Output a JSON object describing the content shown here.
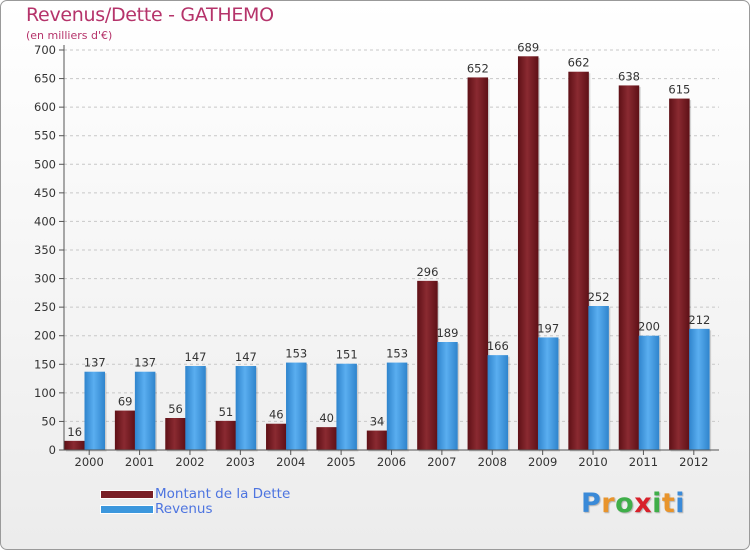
{
  "title": "Revenus/Dette - GATHEMO",
  "subtitle": "(en milliers d'€)",
  "brand": {
    "letters": [
      "P",
      "r",
      "o",
      "x",
      "i",
      "t",
      "i"
    ],
    "colors": [
      "#3a8ad8",
      "#e8942c",
      "#3fae49",
      "#d8202a",
      "#3fae49",
      "#e8942c",
      "#3a8ad8"
    ]
  },
  "chart_data": {
    "type": "bar",
    "categories": [
      "2000",
      "2001",
      "2002",
      "2003",
      "2004",
      "2005",
      "2006",
      "2007",
      "2008",
      "2009",
      "2010",
      "2011",
      "2012"
    ],
    "series": [
      {
        "name": "Montant de la Dette",
        "color": "#7a1f26",
        "values": [
          16,
          69,
          56,
          51,
          46,
          40,
          34,
          296,
          652,
          689,
          662,
          638,
          615
        ]
      },
      {
        "name": "Revenus",
        "color": "#3c97dd",
        "values": [
          137,
          137,
          147,
          147,
          153,
          151,
          153,
          189,
          166,
          197,
          252,
          200,
          212
        ]
      }
    ],
    "ylim": [
      0,
      700
    ],
    "yticks": [
      0,
      50,
      100,
      150,
      200,
      250,
      300,
      350,
      400,
      450,
      500,
      550,
      600,
      650,
      700
    ],
    "grid": true,
    "legend_position": "bottom-left"
  }
}
